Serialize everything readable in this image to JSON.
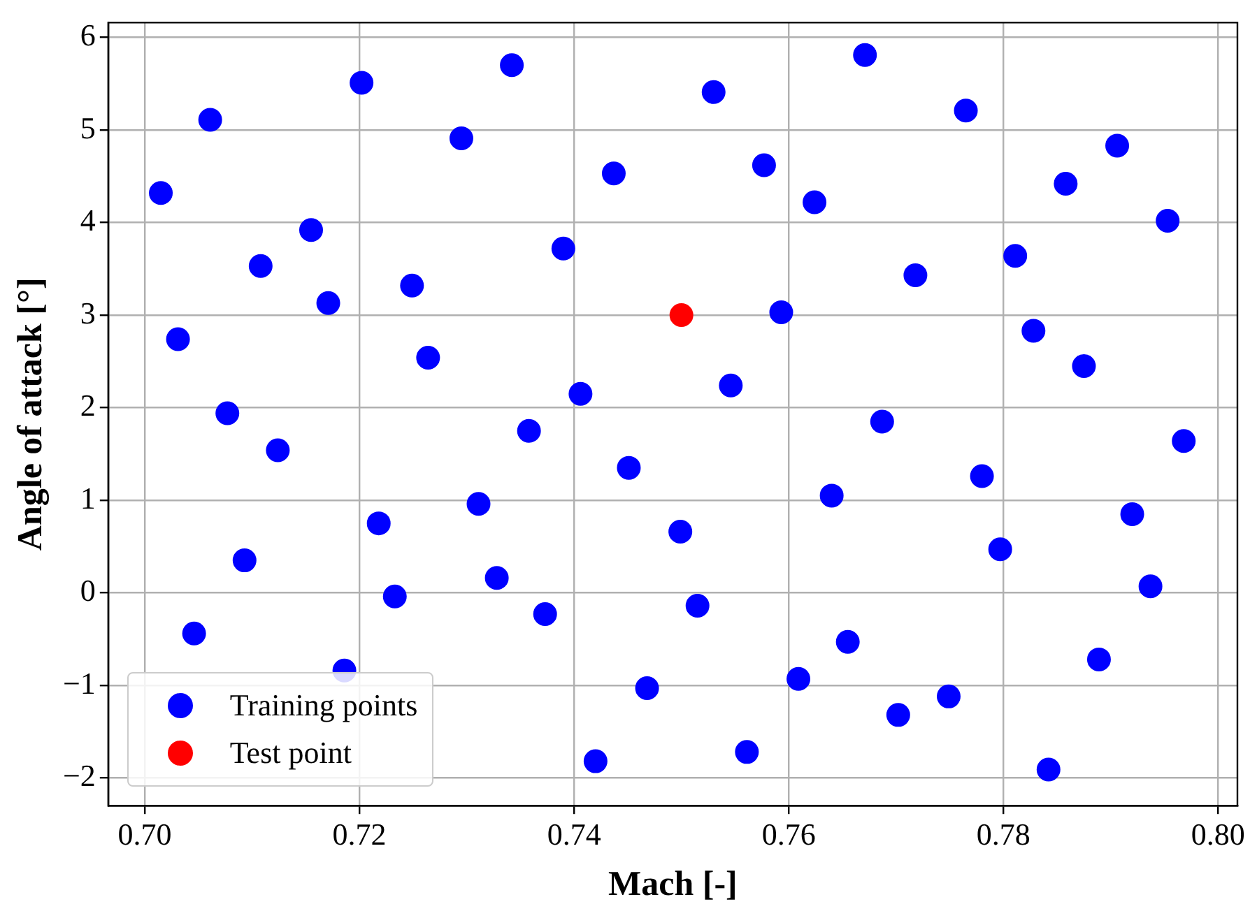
{
  "chart_data": {
    "type": "scatter",
    "xlabel": "Mach [-]",
    "ylabel": "Angle of attack [°]",
    "xlim": [
      0.6966,
      0.8018
    ],
    "ylim": [
      -2.3,
      6.16
    ],
    "xticks": [
      {
        "value": 0.7,
        "label": "0.70"
      },
      {
        "value": 0.72,
        "label": "0.72"
      },
      {
        "value": 0.74,
        "label": "0.74"
      },
      {
        "value": 0.76,
        "label": "0.76"
      },
      {
        "value": 0.78,
        "label": "0.78"
      },
      {
        "value": 0.8,
        "label": "0.80"
      }
    ],
    "yticks": [
      {
        "value": -2,
        "label": "−2"
      },
      {
        "value": -1,
        "label": "−1"
      },
      0,
      1,
      2,
      3,
      4,
      5,
      6
    ],
    "grid": true,
    "legend": "bottom left",
    "marker": "circle",
    "series": [
      {
        "name": "Training points",
        "color": "#0000ff",
        "x": [
          0.7015,
          0.7061,
          0.7031,
          0.7077,
          0.7108,
          0.7155,
          0.7171,
          0.7124,
          0.7093,
          0.7046,
          0.7202,
          0.7218,
          0.7233,
          0.7186,
          0.7249,
          0.7264,
          0.7295,
          0.7342,
          0.739,
          0.7358,
          0.7311,
          0.7328,
          0.7373,
          0.7406,
          0.7437,
          0.7451,
          0.7499,
          0.7468,
          0.742,
          0.753,
          0.7546,
          0.7577,
          0.7593,
          0.7515,
          0.7561,
          0.7609,
          0.7624,
          0.764,
          0.7655,
          0.7671,
          0.7687,
          0.7718,
          0.7702,
          0.7749,
          0.7765,
          0.778,
          0.7797,
          0.7811,
          0.7828,
          0.7858,
          0.7875,
          0.7842,
          0.7889,
          0.7906,
          0.792,
          0.7937,
          0.7953,
          0.7968
        ],
        "values": [
          4.32,
          5.11,
          2.74,
          1.94,
          3.53,
          3.92,
          3.13,
          1.54,
          0.35,
          -0.44,
          5.51,
          0.75,
          -0.04,
          -0.84,
          3.32,
          2.54,
          4.91,
          5.7,
          3.72,
          1.75,
          0.96,
          0.16,
          -0.23,
          2.15,
          4.53,
          1.35,
          0.66,
          -1.03,
          -1.82,
          5.41,
          2.24,
          4.62,
          3.03,
          -0.14,
          -1.72,
          -0.93,
          4.22,
          1.05,
          -0.53,
          5.81,
          1.85,
          3.43,
          -1.32,
          -1.12,
          5.21,
          1.26,
          0.47,
          3.64,
          2.83,
          4.42,
          2.45,
          -1.91,
          -0.72,
          4.83,
          0.85,
          0.07,
          4.02,
          1.64
        ]
      },
      {
        "name": "Test point",
        "color": "#ff0000",
        "x": [
          0.75
        ],
        "values": [
          3.0
        ]
      }
    ]
  }
}
